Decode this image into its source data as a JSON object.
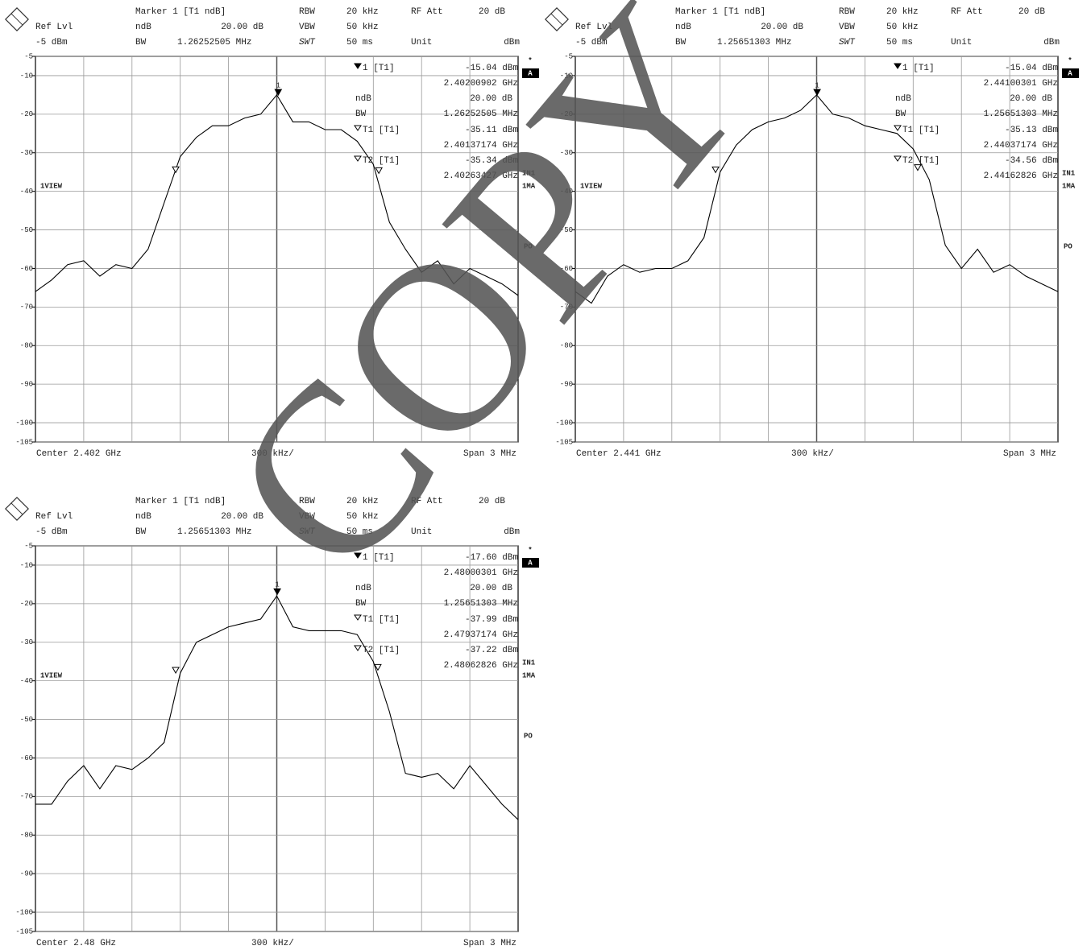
{
  "watermark": "COPY",
  "chart_data": [
    {
      "type": "line",
      "header": {
        "marker_title": "Marker 1 [T1 ndB]",
        "rbw_label": "RBW",
        "rbw": "20 kHz",
        "rf_att_label": "RF Att",
        "rf_att": "20 dB",
        "ref_lvl_label": "Ref Lvl",
        "ndb_label": "ndB",
        "ndb": "20.00 dB",
        "vbw_label": "VBW",
        "vbw": "50 kHz",
        "ref_lvl": "-5 dBm",
        "bw_label": "BW",
        "bw": "1.26252505 MHz",
        "swt_label": "SWT",
        "swt": "50 ms",
        "unit_label": "Unit",
        "unit": "dBm"
      },
      "side_labels": {
        "star": "*",
        "trace": "A",
        "input": "IN1",
        "mode": "1MA",
        "view": "1VIEW",
        "preamp": "PO"
      },
      "footer": {
        "center": "Center 2.402 GHz",
        "div": "300 kHz/",
        "span": "Span 3 MHz"
      },
      "marker_ndb": {
        "label": "ndB",
        "value": "20.00 dB",
        "bw_label": "BW",
        "bw": "1.26252505 MHz"
      },
      "markers": [
        {
          "name": "1 [T1]",
          "peak_label": "1",
          "x": 2.40200902,
          "y": -15.04,
          "x_label": "2.40200902 GHz",
          "y_label": "-15.04 dBm"
        },
        {
          "name": "T1 [T1]",
          "x": 2.40137174,
          "y": -35.11,
          "x_label": "2.40137174 GHz",
          "y_label": "-35.11 dBm"
        },
        {
          "name": "T2 [T1]",
          "x": 2.40263427,
          "y": -35.34,
          "x_label": "2.40263427 GHz",
          "y_label": "-35.34 dBm"
        }
      ],
      "x": [
        2.4005,
        2.4006,
        2.4007,
        2.4008,
        2.4009,
        2.401,
        2.4011,
        2.4012,
        2.4013,
        2.4014,
        2.4015,
        2.4016,
        2.4017,
        2.4018,
        2.4019,
        2.402,
        2.4021,
        2.4022,
        2.4023,
        2.4024,
        2.4025,
        2.4026,
        2.4027,
        2.4028,
        2.4029,
        2.403,
        2.4031,
        2.4032,
        2.4033,
        2.4034,
        2.4035
      ],
      "values": [
        -66,
        -63,
        -59,
        -58,
        -62,
        -59,
        -60,
        -55,
        -43,
        -31,
        -26,
        -23,
        -23,
        -21,
        -20,
        -15,
        -22,
        -22,
        -24,
        -24,
        -27,
        -33,
        -48,
        -55,
        -61,
        -58,
        -64,
        -60,
        -62,
        -64,
        -67
      ],
      "color": "#000000",
      "xlim": [
        2.4005,
        2.4035
      ],
      "ylim": [
        -105,
        -5
      ],
      "yticks": [
        -5,
        -10,
        -20,
        -30,
        -40,
        -50,
        -60,
        -70,
        -80,
        -90,
        -100,
        -105
      ],
      "grid": true
    },
    {
      "type": "line",
      "header": {
        "marker_title": "Marker 1 [T1 ndB]",
        "rbw_label": "RBW",
        "rbw": "20 kHz",
        "rf_att_label": "RF Att",
        "rf_att": "20 dB",
        "ref_lvl_label": "Ref Lvl",
        "ndb_label": "ndB",
        "ndb": "20.00 dB",
        "vbw_label": "VBW",
        "vbw": "50 kHz",
        "ref_lvl": "-5 dBm",
        "bw_label": "BW",
        "bw": "1.25651303 MHz",
        "swt_label": "SWT",
        "swt": "50 ms",
        "unit_label": "Unit",
        "unit": "dBm"
      },
      "side_labels": {
        "star": "*",
        "trace": "A",
        "input": "IN1",
        "mode": "1MA",
        "view": "1VIEW",
        "preamp": "PO"
      },
      "footer": {
        "center": "Center 2.441 GHz",
        "div": "300 kHz/",
        "span": "Span 3 MHz"
      },
      "marker_ndb": {
        "label": "ndB",
        "value": "20.00 dB",
        "bw_label": "BW",
        "bw": "1.25651303 MHz"
      },
      "markers": [
        {
          "name": "1 [T1]",
          "peak_label": "1",
          "x": 2.44100301,
          "y": -15.04,
          "x_label": "2.44100301 GHz",
          "y_label": "-15.04 dBm"
        },
        {
          "name": "T1 [T1]",
          "x": 2.44037174,
          "y": -35.13,
          "x_label": "2.44037174 GHz",
          "y_label": "-35.13 dBm"
        },
        {
          "name": "T2 [T1]",
          "x": 2.44162826,
          "y": -34.56,
          "x_label": "2.44162826 GHz",
          "y_label": "-34.56 dBm"
        }
      ],
      "x": [
        2.4395,
        2.4396,
        2.4397,
        2.4398,
        2.4399,
        2.44,
        2.4401,
        2.4402,
        2.4403,
        2.4404,
        2.4405,
        2.4406,
        2.4407,
        2.4408,
        2.4409,
        2.441,
        2.4411,
        2.4412,
        2.4413,
        2.4414,
        2.4415,
        2.4416,
        2.4417,
        2.4418,
        2.4419,
        2.442,
        2.4421,
        2.4422,
        2.4423,
        2.4424,
        2.4425
      ],
      "values": [
        -66,
        -69,
        -62,
        -59,
        -61,
        -60,
        -60,
        -58,
        -52,
        -35,
        -28,
        -24,
        -22,
        -21,
        -19,
        -15,
        -20,
        -21,
        -23,
        -24,
        -25,
        -29,
        -37,
        -54,
        -60,
        -55,
        -61,
        -59,
        -62,
        -64,
        -66
      ],
      "color": "#000000",
      "xlim": [
        2.4395,
        2.4425
      ],
      "ylim": [
        -105,
        -5
      ],
      "yticks": [
        -5,
        -10,
        -20,
        -30,
        -40,
        -50,
        -60,
        -70,
        -80,
        -90,
        -100,
        -105
      ],
      "grid": true
    },
    {
      "type": "line",
      "header": {
        "marker_title": "Marker 1 [T1 ndB]",
        "rbw_label": "RBW",
        "rbw": "20 kHz",
        "rf_att_label": "RF Att",
        "rf_att": "20 dB",
        "ref_lvl_label": "Ref Lvl",
        "ndb_label": "ndB",
        "ndb": "20.00 dB",
        "vbw_label": "VBW",
        "vbw": "50 kHz",
        "ref_lvl": "-5 dBm",
        "bw_label": "BW",
        "bw": "1.25651303 MHz",
        "swt_label": "SWT",
        "swt": "50 ms",
        "unit_label": "Unit",
        "unit": "dBm"
      },
      "side_labels": {
        "star": "*",
        "trace": "A",
        "input": "IN1",
        "mode": "1MA",
        "view": "1VIEW",
        "preamp": "PO"
      },
      "footer": {
        "center": "Center 2.48 GHz",
        "div": "300 kHz/",
        "span": "Span 3 MHz"
      },
      "marker_ndb": {
        "label": "ndB",
        "value": "20.00 dB",
        "bw_label": "BW",
        "bw": "1.25651303 MHz"
      },
      "markers": [
        {
          "name": "1 [T1]",
          "peak_label": "1",
          "x": 2.48000301,
          "y": -17.6,
          "x_label": "2.48000301 GHz",
          "y_label": "-17.60 dBm"
        },
        {
          "name": "T1 [T1]",
          "x": 2.47937174,
          "y": -37.99,
          "x_label": "2.47937174 GHz",
          "y_label": "-37.99 dBm"
        },
        {
          "name": "T2 [T1]",
          "x": 2.48062826,
          "y": -37.22,
          "x_label": "2.48062826 GHz",
          "y_label": "-37.22 dBm"
        }
      ],
      "x": [
        2.4785,
        2.4786,
        2.4787,
        2.4788,
        2.4789,
        2.479,
        2.4791,
        2.4792,
        2.4793,
        2.4794,
        2.4795,
        2.4796,
        2.4797,
        2.4798,
        2.4799,
        2.48,
        2.4801,
        2.4802,
        2.4803,
        2.4804,
        2.4805,
        2.4806,
        2.4807,
        2.4808,
        2.4809,
        2.481,
        2.4811,
        2.4812,
        2.4813,
        2.4814,
        2.4815
      ],
      "values": [
        -72,
        -72,
        -66,
        -62,
        -68,
        -62,
        -63,
        -60,
        -56,
        -38,
        -30,
        -28,
        -26,
        -25,
        -24,
        -18,
        -26,
        -27,
        -27,
        -27,
        -28,
        -35,
        -48,
        -64,
        -65,
        -64,
        -68,
        -62,
        -67,
        -72,
        -76
      ],
      "color": "#000000",
      "xlim": [
        2.4785,
        2.4815
      ],
      "ylim": [
        -105,
        -5
      ],
      "yticks": [
        -5,
        -10,
        -20,
        -30,
        -40,
        -50,
        -60,
        -70,
        -80,
        -90,
        -100,
        -105
      ],
      "grid": true
    }
  ]
}
